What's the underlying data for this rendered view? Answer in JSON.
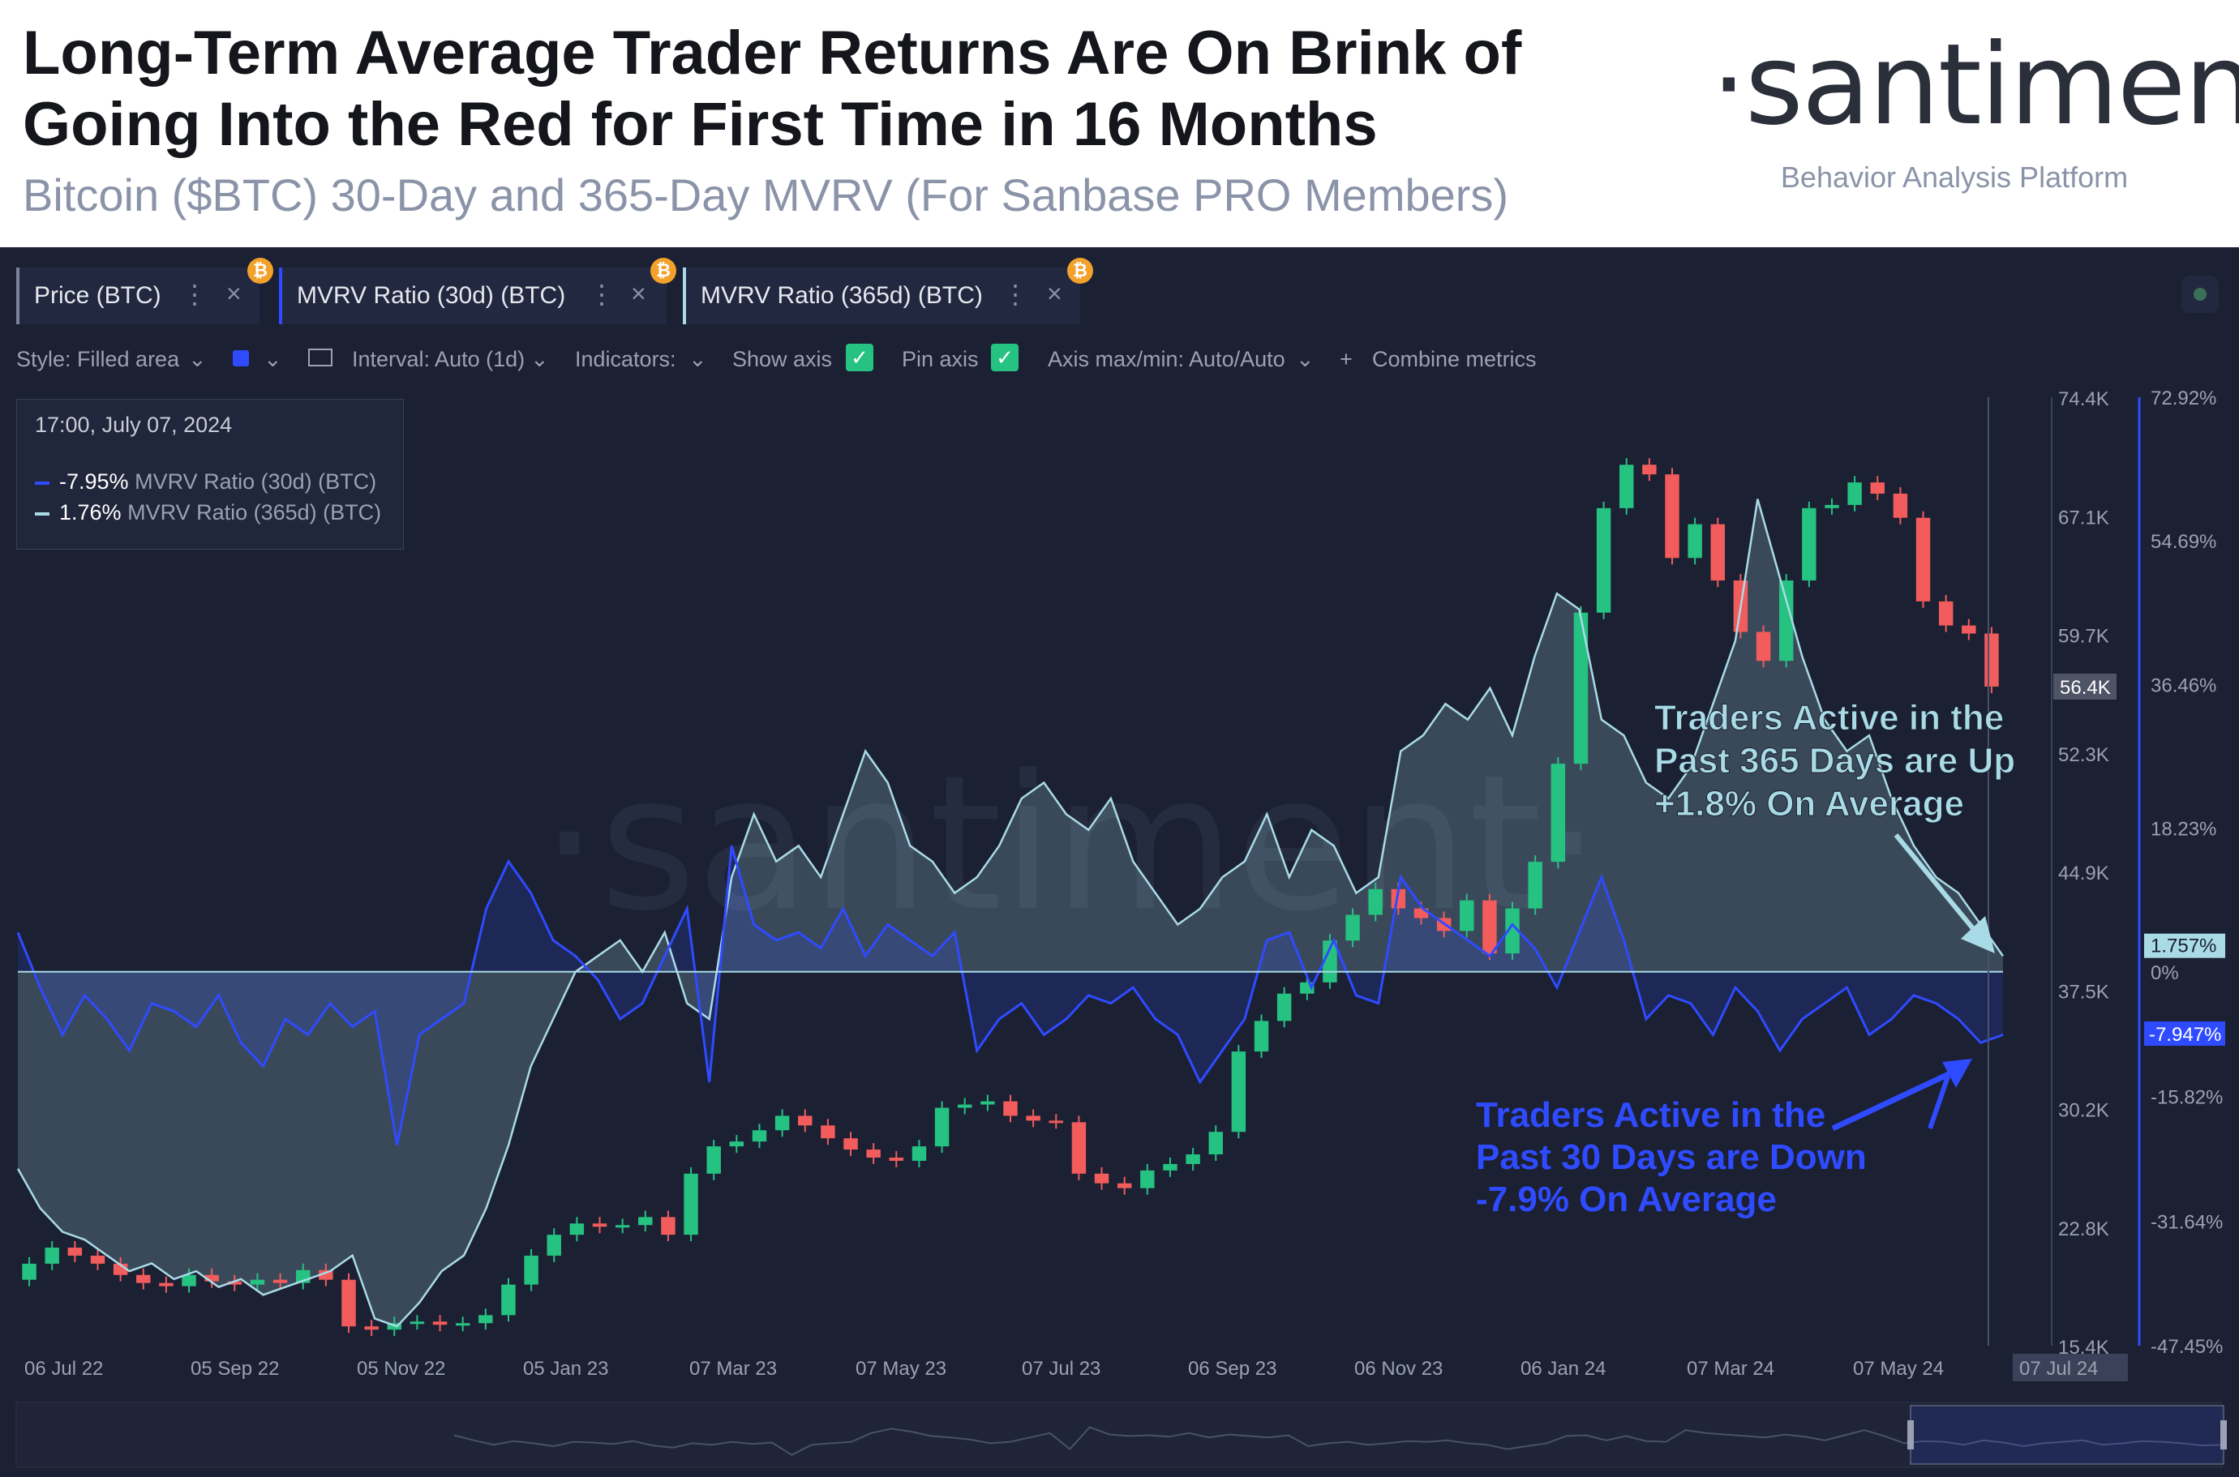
{
  "header": {
    "title": "Long-Term Average Trader Returns Are On Brink of Going Into the Red for First Time in 16 Months",
    "subtitle": "Bitcoin ($BTC) 30-Day and 365-Day MVRV (For Sanbase PRO Members)",
    "brand": "·santiment·",
    "tagline": "Behavior Analysis Platform"
  },
  "tabs": [
    {
      "label": "Price (BTC)",
      "color": "#7c8396"
    },
    {
      "label": "MVRV Ratio (30d) (BTC)",
      "color": "#2f4bff"
    },
    {
      "label": "MVRV Ratio (365d) (BTC)",
      "color": "#a9dbe6"
    }
  ],
  "toolbar": {
    "style": "Style: Filled area",
    "interval": "Interval: Auto (1d)",
    "indicators": "Indicators:",
    "show_axis": "Show axis",
    "pin_axis": "Pin axis",
    "axis_maxmin": "Axis max/min: Auto/Auto",
    "combine": "Combine metrics"
  },
  "legend": {
    "date": "17:00, July 07, 2024",
    "rows": [
      {
        "value": "-7.95%",
        "label": "MVRV Ratio (30d) (BTC)",
        "color": "#2f4bff"
      },
      {
        "value": "1.76%",
        "label": "MVRV Ratio (365d) (BTC)",
        "color": "#a9dbe6"
      }
    ]
  },
  "chart_data": {
    "type": "line",
    "x_ticks": [
      "06 Jul 22",
      "05 Sep 22",
      "05 Nov 22",
      "05 Jan 23",
      "07 Mar 23",
      "07 May 23",
      "07 Jul 23",
      "06 Sep 23",
      "06 Nov 23",
      "06 Jan 24",
      "07 Mar 24",
      "07 May 24",
      "07 Jul 24"
    ],
    "price_axis": {
      "ticks": [
        "74.4K",
        "67.1K",
        "59.7K",
        "52.3K",
        "44.9K",
        "37.5K",
        "30.2K",
        "22.8K",
        "15.4K"
      ],
      "current": "56.4K",
      "ylim": [
        15400,
        74400
      ]
    },
    "mvrv_axis": {
      "ticks": [
        "72.92%",
        "54.69%",
        "36.46%",
        "18.23%",
        "0%",
        "-15.82%",
        "-31.64%",
        "-47.45%"
      ],
      "ylim": [
        -47.45,
        72.92
      ]
    },
    "series": [
      {
        "name": "MVRV Ratio (30d) (BTC)",
        "unit": "%",
        "current": "-7.947%",
        "values": [
          5,
          -2,
          -8,
          -3,
          -6,
          -10,
          -4,
          -5,
          -7,
          -3,
          -9,
          -12,
          -6,
          -8,
          -4,
          -7,
          -5,
          -22,
          -8,
          -6,
          -4,
          8,
          14,
          10,
          4,
          2,
          -1,
          -6,
          -4,
          2,
          8,
          -14,
          16,
          6,
          4,
          5,
          3,
          8,
          2,
          6,
          4,
          2,
          5,
          -10,
          -6,
          -4,
          -8,
          -6,
          -3,
          -4,
          -2,
          -6,
          -8,
          -14,
          -10,
          -6,
          4,
          5,
          -2,
          4,
          -3,
          -4,
          12,
          8,
          6,
          4,
          2,
          6,
          3,
          -2,
          5,
          12,
          4,
          -6,
          -3,
          -4,
          -8,
          -2,
          -5,
          -10,
          -6,
          -4,
          -2,
          -8,
          -6,
          -3,
          -4,
          -6,
          -9,
          -8
        ]
      },
      {
        "name": "MVRV Ratio (365d) (BTC)",
        "unit": "%",
        "current": "1.757%",
        "values": [
          -25,
          -30,
          -33,
          -34,
          -36,
          -38,
          -37,
          -39,
          -38,
          -40,
          -39,
          -41,
          -40,
          -39,
          -38,
          -36,
          -44,
          -45,
          -42,
          -38,
          -36,
          -30,
          -22,
          -12,
          -6,
          0,
          2,
          4,
          0,
          5,
          -4,
          -6,
          12,
          20,
          14,
          16,
          12,
          20,
          28,
          24,
          16,
          14,
          10,
          12,
          16,
          22,
          24,
          20,
          18,
          22,
          14,
          10,
          6,
          8,
          12,
          14,
          20,
          12,
          18,
          16,
          10,
          12,
          28,
          30,
          34,
          32,
          36,
          30,
          40,
          48,
          46,
          32,
          30,
          24,
          22,
          26,
          34,
          42,
          60,
          50,
          40,
          32,
          28,
          30,
          22,
          16,
          12,
          10,
          6,
          2
        ]
      },
      {
        "name": "Price (BTC)",
        "unit": "USD",
        "open": [
          19500,
          20500,
          21500,
          21000,
          20500,
          19800,
          19300,
          19100,
          19800,
          19400,
          19200,
          19500,
          19300,
          20100,
          19500,
          16600,
          16400,
          16800,
          16900,
          16700,
          16800,
          17300,
          19200,
          21000,
          22300,
          23000,
          22800,
          22900,
          23400,
          22300,
          26100,
          27800,
          28100,
          28800,
          29700,
          29100,
          28300,
          27600,
          27100,
          26900,
          27800,
          30200,
          30400,
          30600,
          29700,
          29400,
          29300,
          26100,
          25500,
          25200,
          26300,
          26700,
          27300,
          28700,
          33700,
          35600,
          37300,
          38000,
          40600,
          42200,
          43800,
          42600,
          42000,
          41200,
          43100,
          39800,
          42600,
          45500,
          51600,
          61000,
          67500,
          70200,
          69600,
          64400,
          66500,
          63000,
          59800,
          58000,
          63000,
          67500,
          67700,
          69100,
          68400,
          66900,
          61700,
          60200,
          59700
        ],
        "close": [
          20500,
          21500,
          21000,
          20500,
          19800,
          19300,
          19100,
          19800,
          19400,
          19200,
          19500,
          19300,
          20100,
          19500,
          16600,
          16400,
          16800,
          16900,
          16700,
          16800,
          17300,
          19200,
          21000,
          22300,
          23000,
          22800,
          22900,
          23400,
          22300,
          26100,
          27800,
          28100,
          28800,
          29700,
          29100,
          28300,
          27600,
          27100,
          26900,
          27800,
          30200,
          30400,
          30600,
          29700,
          29400,
          29300,
          26100,
          25500,
          25200,
          26300,
          26700,
          27300,
          28700,
          33700,
          35600,
          37300,
          38000,
          40600,
          42200,
          43800,
          42600,
          42000,
          41200,
          43100,
          39800,
          42600,
          45500,
          51600,
          61000,
          67500,
          70200,
          69600,
          64400,
          66500,
          63000,
          59800,
          58000,
          63000,
          67500,
          67700,
          69100,
          68400,
          66900,
          61700,
          60200,
          59700,
          56400
        ]
      }
    ],
    "annotations": [
      {
        "text": [
          "Traders Active in the",
          "Past 365 Days are Up",
          "+1.8% On Average"
        ],
        "color": "#a9dbe6"
      },
      {
        "text": [
          "Traders Active in the",
          "Past 30 Days are Down",
          "-7.9% On Average"
        ],
        "color": "#2f4bff"
      }
    ],
    "watermark": "·santiment·",
    "grid": false
  }
}
